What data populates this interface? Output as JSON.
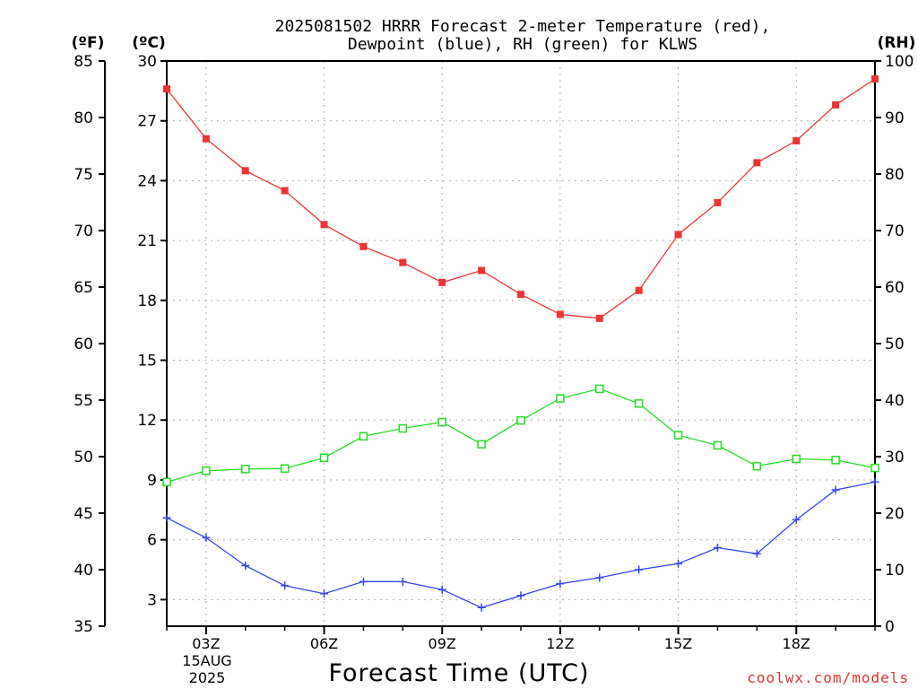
{
  "chart_data": {
    "type": "line",
    "title_line1": "2025081502 HRRR Forecast 2-meter Temperature (red),",
    "title_line2": "Dewpoint (blue), RH (green) for KLWS",
    "xlabel": "Forecast Time (UTC)",
    "watermark": "coolwx.com/models",
    "left_outer_axis": {
      "unit_label": "(ºF)",
      "ylim": [
        35,
        85
      ],
      "ticks": [
        "35",
        "40",
        "45",
        "50",
        "55",
        "60",
        "65",
        "70",
        "75",
        "80",
        "85"
      ]
    },
    "left_inner_axis": {
      "unit_label": "(ºC)",
      "ylim": [
        1.667,
        30
      ],
      "ticks": [
        "3",
        "6",
        "9",
        "12",
        "15",
        "18",
        "21",
        "24",
        "27",
        "30"
      ]
    },
    "right_axis": {
      "unit_label": "(RH)",
      "ylim": [
        0,
        100
      ],
      "ticks": [
        "0",
        "10",
        "20",
        "30",
        "40",
        "50",
        "60",
        "70",
        "80",
        "90",
        "100"
      ]
    },
    "x_hours": [
      2,
      3,
      4,
      5,
      6,
      7,
      8,
      9,
      10,
      11,
      12,
      13,
      14,
      15,
      16,
      17,
      18,
      19,
      20
    ],
    "xlim": [
      2,
      20
    ],
    "x_ticks": [
      {
        "hour": 3,
        "label": "03Z"
      },
      {
        "hour": 6,
        "label": "06Z"
      },
      {
        "hour": 9,
        "label": "09Z"
      },
      {
        "hour": 12,
        "label": "12Z"
      },
      {
        "hour": 15,
        "label": "15Z"
      },
      {
        "hour": 18,
        "label": "18Z"
      }
    ],
    "x_date_line1": "15AUG",
    "x_date_line2": "2025",
    "series": [
      {
        "name": "Temperature",
        "units": "C",
        "color": "#ee3333",
        "marker": "filled-square",
        "values": [
          28.6,
          26.1,
          24.5,
          23.5,
          21.8,
          20.7,
          19.9,
          18.9,
          19.5,
          18.3,
          17.3,
          17.1,
          18.5,
          21.3,
          22.9,
          24.9,
          26.0,
          27.8,
          29.1
        ]
      },
      {
        "name": "Dewpoint",
        "units": "C",
        "color": "#3344ee",
        "marker": "plus",
        "values": [
          7.1,
          6.1,
          4.7,
          3.7,
          3.3,
          3.9,
          3.9,
          3.5,
          2.6,
          3.2,
          3.8,
          4.1,
          4.5,
          4.8,
          5.6,
          5.3,
          7.0,
          8.5,
          8.9
        ]
      },
      {
        "name": "RH",
        "units": "%",
        "color": "#22dd22",
        "marker": "open-square",
        "values": [
          25.5,
          27.5,
          27.8,
          27.9,
          29.8,
          33.6,
          35.0,
          36.1,
          32.2,
          36.4,
          40.3,
          42.0,
          39.4,
          33.8,
          32.0,
          28.3,
          29.6,
          29.4,
          28.0
        ]
      }
    ]
  }
}
